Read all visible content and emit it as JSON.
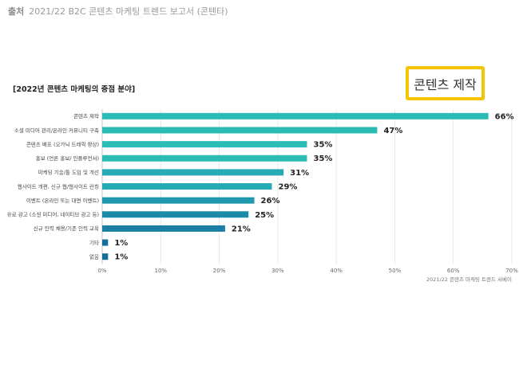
{
  "source": {
    "lead": "출처",
    "text": "2021/22 B2C 콘텐츠 마케팅 트렌드 보고서 (콘텐타)"
  },
  "highlight": {
    "label": "콘텐츠 제작",
    "color": "#f5c400"
  },
  "chart_data": {
    "type": "bar",
    "orientation": "horizontal",
    "title": "[2022년 콘텐츠 마케팅의 중점 분야]",
    "categories": [
      "콘텐츠 제작",
      "소셜 미디어 관리/온라인 커뮤니티 구축",
      "콘텐츠 배포 (오가닉 트래픽 향상)",
      "홍보 (언론 홍보/ 인플루언서)",
      "마케팅 기술/툴 도입 및 개선",
      "웹사이트 개편, 신규 웹/웹사이트 런칭",
      "이벤트 (온라인 또는 대면 이벤트)",
      "유료 광고 (소셜 미디어, 네이티브 광고 등)",
      "신규 인력 채용/기존 인력 교육",
      "기타",
      "없음"
    ],
    "values": [
      66,
      47,
      35,
      35,
      31,
      29,
      26,
      25,
      21,
      1,
      1
    ],
    "value_labels": [
      "66%",
      "47%",
      "35%",
      "35%",
      "31%",
      "29%",
      "26%",
      "25%",
      "21%",
      "1%",
      "1%"
    ],
    "colors": [
      "#2bbdb5",
      "#2bbdb5",
      "#2bbdb5",
      "#2bbdb5",
      "#26aab3",
      "#26aab3",
      "#2099ae",
      "#1d8aa8",
      "#1b7fa5",
      "#166f9a",
      "#166f9a"
    ],
    "xlim": [
      0,
      70
    ],
    "xticks": [
      0,
      10,
      20,
      30,
      40,
      50,
      60,
      70
    ],
    "xtick_labels": [
      "0%",
      "10%",
      "20%",
      "30%",
      "40%",
      "50%",
      "60%",
      "70%"
    ],
    "grid": true,
    "note": "2021/22 콘텐츠 마케팅 트렌드 서베이"
  }
}
